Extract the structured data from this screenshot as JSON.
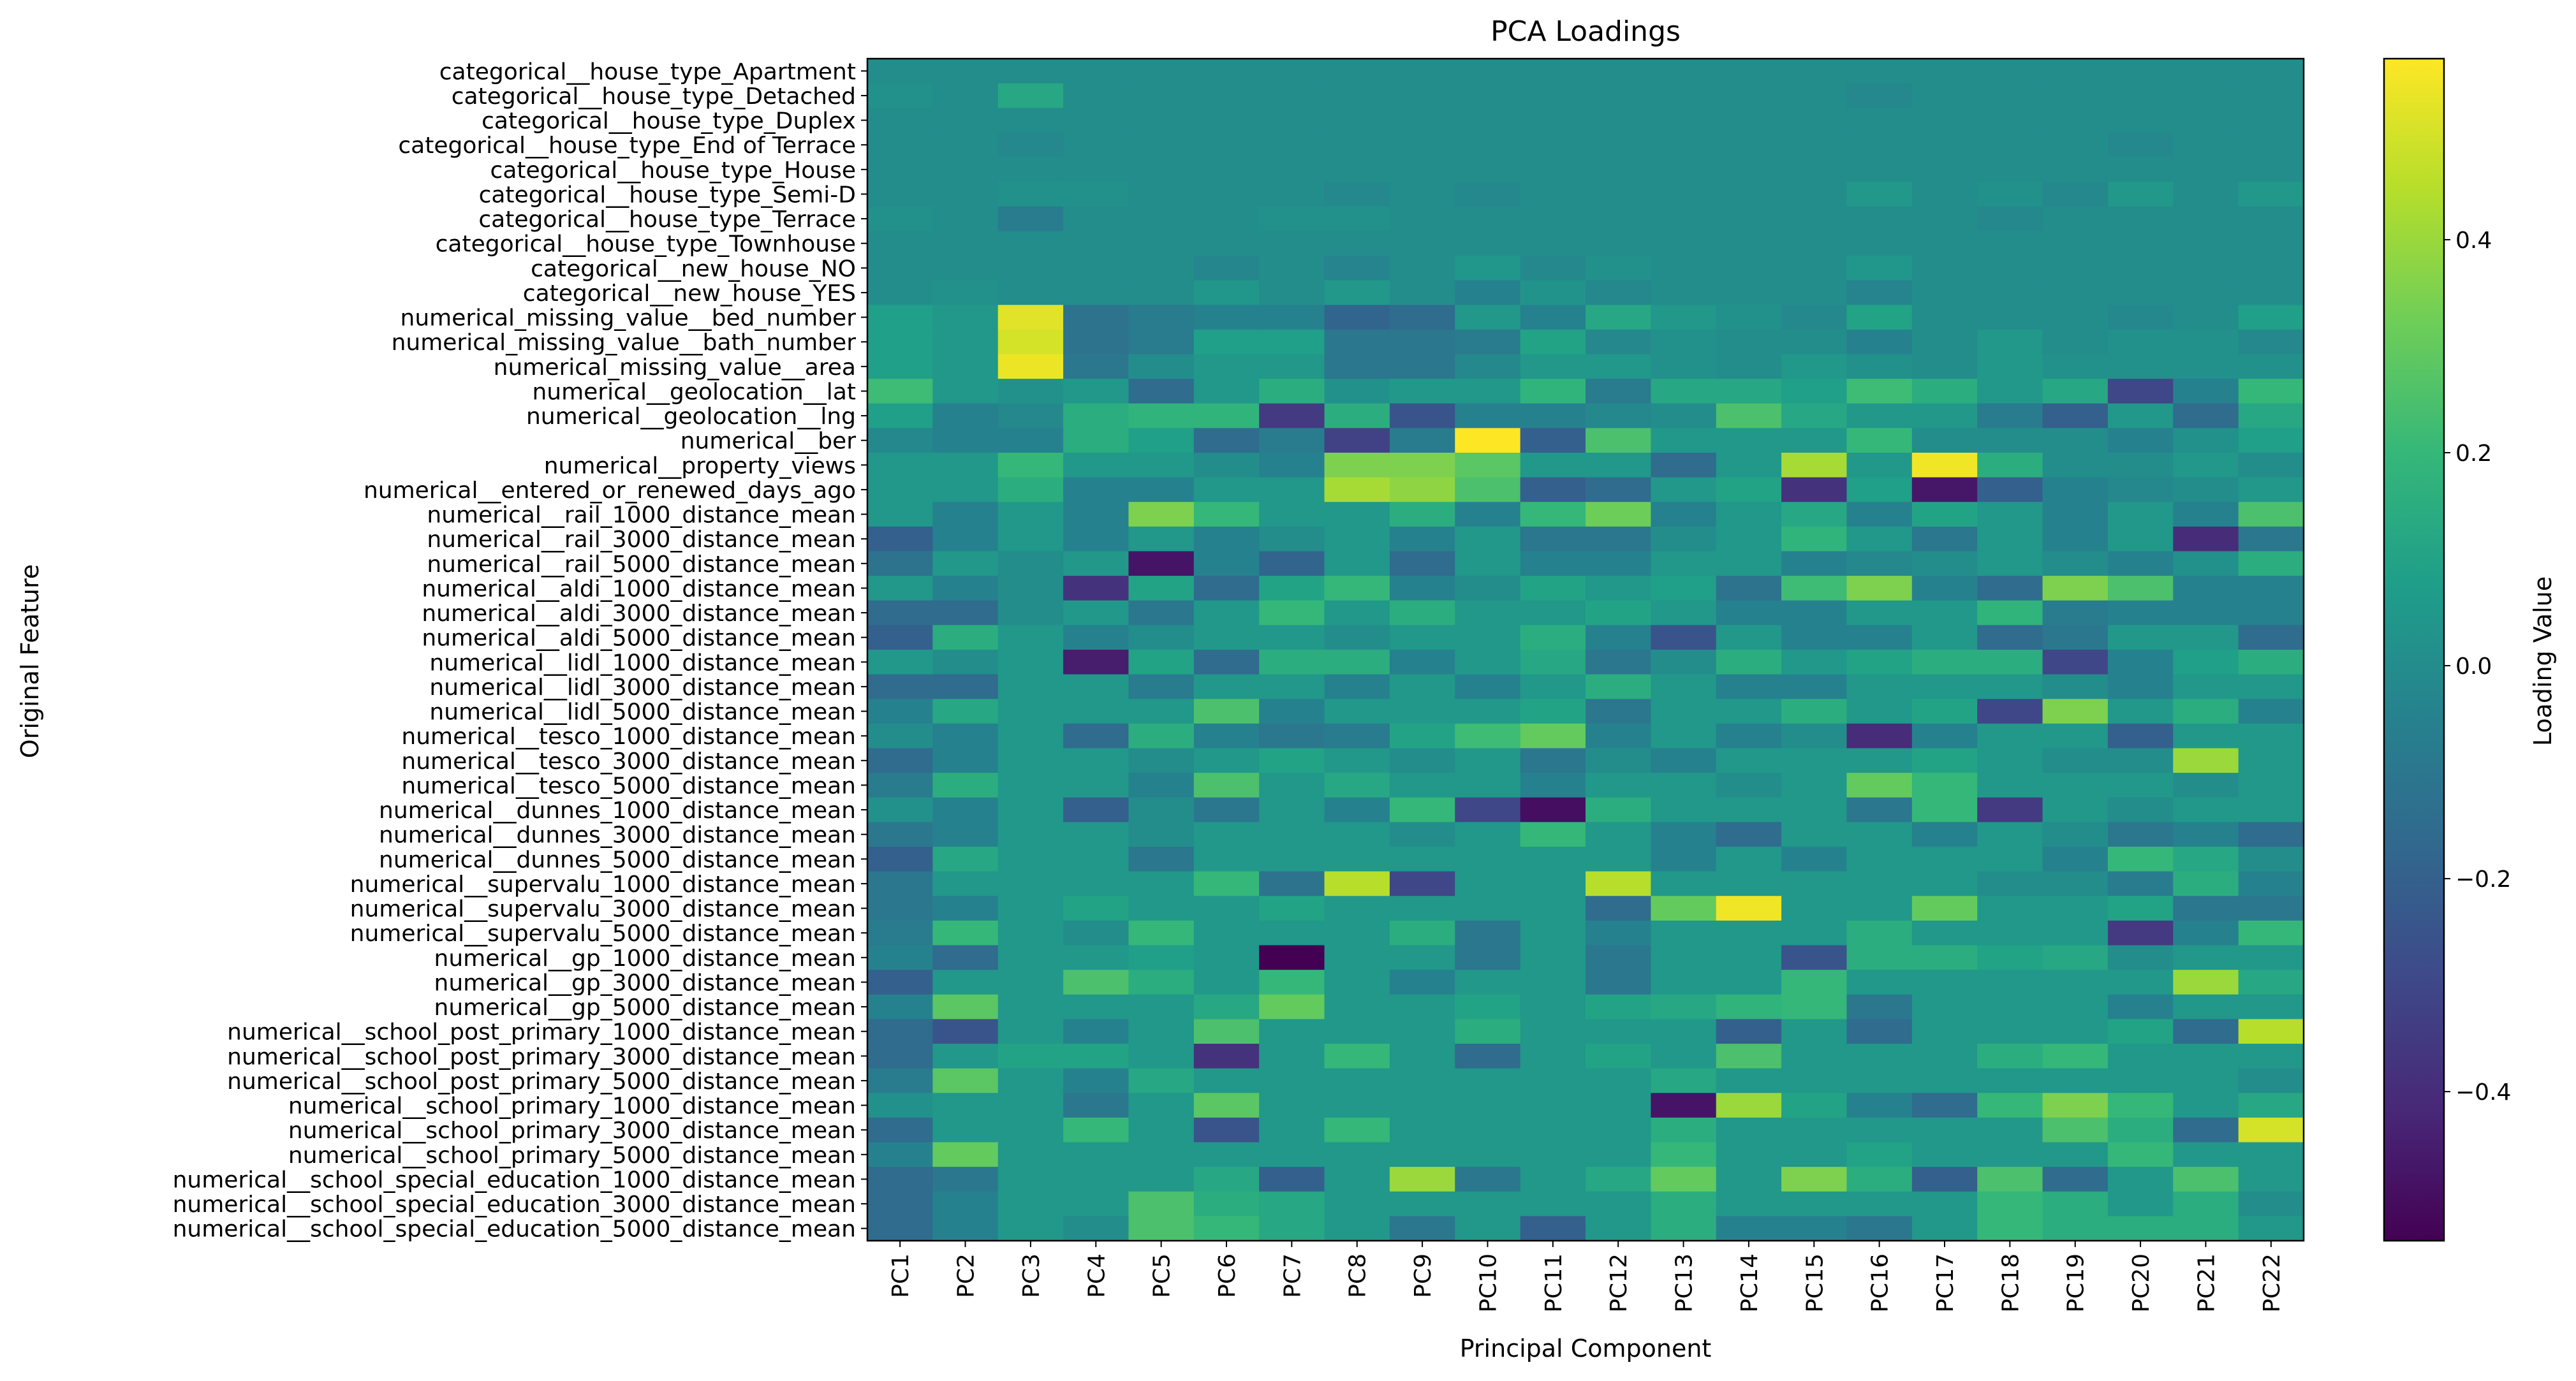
{
  "chart_data": {
    "type": "heatmap",
    "title": "PCA Loadings",
    "xlabel": "Principal Component",
    "ylabel": "Original Feature",
    "colorbar_label": "Loading Value",
    "colormap": "viridis",
    "vmin": -0.54,
    "vmax": 0.57,
    "colorbar_ticks": [
      -0.4,
      -0.2,
      0.0,
      0.2,
      0.4
    ],
    "colorbar_tick_labels": [
      "−0.4",
      "−0.2",
      "0.0",
      "0.2",
      "0.4"
    ],
    "x_categories": [
      "PC1",
      "PC2",
      "PC3",
      "PC4",
      "PC5",
      "PC6",
      "PC7",
      "PC8",
      "PC9",
      "PC10",
      "PC11",
      "PC12",
      "PC13",
      "PC14",
      "PC15",
      "PC16",
      "PC17",
      "PC18",
      "PC19",
      "PC20",
      "PC21",
      "PC22"
    ],
    "y_categories": [
      "categorical__house_type_Apartment",
      "categorical__house_type_Detached",
      "categorical__house_type_Duplex",
      "categorical__house_type_End of Terrace",
      "categorical__house_type_House",
      "categorical__house_type_Semi-D",
      "categorical__house_type_Terrace",
      "categorical__house_type_Townhouse",
      "categorical__new_house_NO",
      "categorical__new_house_YES",
      "numerical_missing_value__bed_number",
      "numerical_missing_value__bath_number",
      "numerical_missing_value__area",
      "numerical__geolocation__lat",
      "numerical__geolocation__lng",
      "numerical__ber",
      "numerical__property_views",
      "numerical__entered_or_renewed_days_ago",
      "numerical__rail_1000_distance_mean",
      "numerical__rail_3000_distance_mean",
      "numerical__rail_5000_distance_mean",
      "numerical__aldi_1000_distance_mean",
      "numerical__aldi_3000_distance_mean",
      "numerical__aldi_5000_distance_mean",
      "numerical__lidl_1000_distance_mean",
      "numerical__lidl_3000_distance_mean",
      "numerical__lidl_5000_distance_mean",
      "numerical__tesco_1000_distance_mean",
      "numerical__tesco_3000_distance_mean",
      "numerical__tesco_5000_distance_mean",
      "numerical__dunnes_1000_distance_mean",
      "numerical__dunnes_3000_distance_mean",
      "numerical__dunnes_5000_distance_mean",
      "numerical__supervalu_1000_distance_mean",
      "numerical__supervalu_3000_distance_mean",
      "numerical__supervalu_5000_distance_mean",
      "numerical__gp_1000_distance_mean",
      "numerical__gp_3000_distance_mean",
      "numerical__gp_5000_distance_mean",
      "numerical__school_post_primary_1000_distance_mean",
      "numerical__school_post_primary_3000_distance_mean",
      "numerical__school_post_primary_5000_distance_mean",
      "numerical__school_primary_1000_distance_mean",
      "numerical__school_primary_3000_distance_mean",
      "numerical__school_primary_5000_distance_mean",
      "numerical__school_special_education_1000_distance_mean",
      "numerical__school_special_education_3000_distance_mean",
      "numerical__school_special_education_5000_distance_mean"
    ],
    "values": [
      [
        0.0,
        0.0,
        0.0,
        0.0,
        0.0,
        0.0,
        0.0,
        0.0,
        0.0,
        0.0,
        0.0,
        0.0,
        0.0,
        0.0,
        0.0,
        0.0,
        0.0,
        0.0,
        0.0,
        0.0,
        0.0,
        0.0
      ],
      [
        0.02,
        0.0,
        0.12,
        0.0,
        0.0,
        0.0,
        0.0,
        0.0,
        0.0,
        0.0,
        0.0,
        0.0,
        0.0,
        0.0,
        0.0,
        -0.02,
        0.0,
        0.0,
        0.0,
        0.0,
        0.0,
        0.0
      ],
      [
        0.0,
        0.0,
        0.0,
        0.0,
        0.0,
        0.0,
        0.0,
        0.0,
        0.0,
        0.0,
        0.0,
        0.0,
        0.0,
        0.0,
        0.0,
        0.0,
        0.0,
        0.0,
        0.0,
        0.0,
        0.0,
        0.0
      ],
      [
        0.0,
        0.0,
        -0.02,
        0.0,
        0.0,
        0.0,
        0.0,
        0.0,
        0.0,
        0.0,
        0.0,
        0.0,
        0.0,
        0.0,
        0.0,
        0.0,
        0.0,
        0.0,
        0.0,
        -0.02,
        0.0,
        0.0
      ],
      [
        0.0,
        0.0,
        0.0,
        0.0,
        0.0,
        0.0,
        0.0,
        0.0,
        0.0,
        0.0,
        0.0,
        0.0,
        0.0,
        0.0,
        0.0,
        0.0,
        0.0,
        0.0,
        0.0,
        0.0,
        0.0,
        0.0
      ],
      [
        0.0,
        0.0,
        0.02,
        0.02,
        0.0,
        0.0,
        0.0,
        -0.02,
        0.0,
        -0.02,
        0.0,
        0.0,
        0.0,
        0.0,
        0.0,
        0.05,
        0.0,
        0.02,
        -0.02,
        0.05,
        0.0,
        0.05
      ],
      [
        0.02,
        0.0,
        -0.08,
        0.0,
        0.0,
        0.0,
        0.02,
        0.02,
        0.0,
        0.0,
        0.0,
        0.0,
        0.0,
        0.0,
        0.0,
        0.0,
        0.0,
        -0.02,
        0.0,
        0.0,
        0.0,
        0.0
      ],
      [
        0.0,
        0.0,
        0.0,
        0.0,
        0.0,
        0.0,
        0.0,
        0.0,
        0.0,
        0.0,
        0.0,
        0.0,
        0.0,
        0.0,
        0.0,
        0.0,
        0.0,
        0.0,
        0.0,
        0.0,
        0.0,
        0.0
      ],
      [
        0.0,
        0.0,
        0.0,
        0.0,
        0.0,
        -0.03,
        0.0,
        -0.04,
        0.0,
        0.04,
        -0.02,
        0.02,
        0.0,
        0.0,
        0.0,
        0.04,
        0.0,
        0.0,
        0.0,
        0.0,
        0.0,
        0.0
      ],
      [
        0.0,
        0.02,
        0.0,
        0.0,
        0.0,
        0.04,
        0.0,
        0.05,
        0.0,
        -0.05,
        0.03,
        -0.02,
        0.0,
        0.0,
        0.0,
        -0.04,
        0.0,
        0.0,
        0.0,
        0.0,
        0.0,
        0.0
      ],
      [
        0.08,
        0.05,
        0.52,
        -0.12,
        -0.08,
        -0.05,
        -0.05,
        -0.18,
        -0.15,
        0.05,
        -0.05,
        0.12,
        0.05,
        0.02,
        -0.02,
        0.1,
        0.0,
        0.0,
        0.0,
        -0.02,
        0.0,
        0.08
      ],
      [
        0.08,
        0.05,
        0.5,
        -0.12,
        -0.08,
        0.08,
        0.08,
        -0.1,
        -0.1,
        -0.08,
        0.1,
        -0.02,
        0.02,
        0.0,
        0.0,
        -0.05,
        0.0,
        0.05,
        0.0,
        0.02,
        0.02,
        -0.02
      ],
      [
        0.08,
        0.05,
        0.54,
        -0.1,
        0.0,
        0.05,
        0.05,
        -0.1,
        -0.1,
        -0.02,
        0.05,
        0.05,
        0.02,
        0.0,
        0.05,
        0.02,
        0.0,
        0.05,
        0.02,
        0.02,
        0.02,
        0.02
      ],
      [
        0.22,
        0.05,
        0.02,
        0.05,
        -0.15,
        0.05,
        0.15,
        0.02,
        0.05,
        0.05,
        0.18,
        -0.08,
        0.12,
        0.12,
        0.08,
        0.22,
        0.15,
        0.05,
        0.12,
        -0.3,
        -0.05,
        0.2
      ],
      [
        0.08,
        -0.05,
        -0.02,
        0.15,
        0.18,
        0.18,
        -0.35,
        0.15,
        -0.25,
        -0.05,
        -0.05,
        -0.02,
        0.0,
        0.25,
        0.12,
        0.05,
        0.05,
        -0.08,
        -0.2,
        0.05,
        -0.15,
        0.12
      ],
      [
        -0.02,
        -0.05,
        -0.05,
        0.15,
        0.08,
        -0.15,
        -0.08,
        -0.32,
        -0.08,
        0.57,
        -0.2,
        0.25,
        0.05,
        0.05,
        0.05,
        0.2,
        0.0,
        0.0,
        0.0,
        -0.05,
        0.02,
        0.08
      ],
      [
        0.05,
        0.05,
        0.2,
        0.05,
        0.05,
        0.0,
        -0.05,
        0.35,
        0.35,
        0.28,
        0.05,
        0.05,
        -0.15,
        0.05,
        0.42,
        0.05,
        0.55,
        0.15,
        0.0,
        0.0,
        0.05,
        0.0
      ],
      [
        0.05,
        0.05,
        0.15,
        -0.05,
        -0.05,
        0.05,
        0.05,
        0.42,
        0.38,
        0.25,
        -0.2,
        -0.15,
        0.05,
        0.1,
        -0.38,
        0.08,
        -0.47,
        -0.2,
        -0.05,
        -0.02,
        0.0,
        0.05
      ],
      [
        0.05,
        -0.05,
        0.05,
        -0.05,
        0.35,
        0.2,
        0.05,
        0.05,
        0.15,
        -0.05,
        0.2,
        0.32,
        -0.05,
        0.05,
        0.12,
        -0.05,
        0.1,
        0.05,
        -0.05,
        0.05,
        -0.05,
        0.25
      ],
      [
        -0.2,
        -0.05,
        0.05,
        -0.05,
        0.05,
        -0.05,
        0.0,
        0.05,
        -0.05,
        0.05,
        -0.1,
        -0.1,
        0.0,
        0.05,
        0.18,
        0.05,
        -0.1,
        0.05,
        -0.05,
        0.05,
        -0.4,
        -0.1
      ],
      [
        -0.12,
        0.05,
        0.0,
        0.05,
        -0.48,
        -0.05,
        -0.18,
        0.05,
        -0.15,
        0.05,
        -0.05,
        -0.05,
        0.05,
        0.05,
        -0.05,
        -0.02,
        0.0,
        0.05,
        0.0,
        -0.05,
        0.02,
        0.15
      ],
      [
        0.05,
        -0.05,
        0.0,
        -0.38,
        0.1,
        -0.15,
        0.1,
        0.2,
        -0.05,
        0.0,
        0.1,
        0.05,
        0.08,
        -0.12,
        0.22,
        0.35,
        -0.05,
        -0.15,
        0.35,
        0.25,
        -0.05,
        -0.05
      ],
      [
        -0.15,
        -0.15,
        0.0,
        0.05,
        -0.1,
        0.05,
        0.2,
        0.05,
        0.15,
        0.05,
        0.05,
        0.1,
        0.05,
        -0.05,
        -0.05,
        0.05,
        0.05,
        0.18,
        -0.08,
        -0.05,
        -0.05,
        -0.05
      ],
      [
        -0.2,
        0.15,
        0.05,
        -0.05,
        0.0,
        0.05,
        0.05,
        0.0,
        0.05,
        0.05,
        0.15,
        -0.05,
        -0.25,
        0.05,
        -0.05,
        -0.05,
        0.05,
        -0.15,
        -0.1,
        0.05,
        0.05,
        -0.15
      ],
      [
        0.05,
        0.0,
        0.05,
        -0.45,
        0.1,
        -0.15,
        0.15,
        0.15,
        -0.05,
        0.05,
        0.12,
        -0.1,
        0.0,
        0.15,
        0.05,
        0.1,
        0.15,
        0.15,
        -0.3,
        -0.05,
        0.08,
        0.15
      ],
      [
        -0.15,
        -0.15,
        0.05,
        0.05,
        -0.08,
        0.05,
        0.05,
        -0.05,
        0.05,
        -0.05,
        0.05,
        0.15,
        0.05,
        -0.05,
        -0.05,
        0.05,
        0.05,
        0.05,
        0.0,
        -0.05,
        0.05,
        0.05
      ],
      [
        -0.05,
        0.12,
        0.05,
        0.05,
        0.05,
        0.25,
        -0.05,
        0.05,
        0.05,
        0.05,
        0.1,
        -0.1,
        0.05,
        0.05,
        0.15,
        0.05,
        0.1,
        -0.3,
        0.35,
        0.05,
        0.15,
        -0.05
      ],
      [
        0.0,
        -0.05,
        0.05,
        -0.15,
        0.15,
        -0.05,
        -0.1,
        -0.08,
        0.1,
        0.22,
        0.3,
        -0.05,
        0.05,
        -0.05,
        0.0,
        -0.4,
        -0.05,
        0.05,
        0.05,
        -0.2,
        0.05,
        0.05
      ],
      [
        -0.15,
        -0.05,
        0.05,
        0.05,
        0.0,
        0.05,
        0.1,
        0.05,
        0.0,
        0.05,
        -0.1,
        0.0,
        -0.05,
        0.05,
        0.05,
        0.05,
        0.1,
        0.05,
        0.0,
        0.0,
        0.4,
        0.05
      ],
      [
        -0.08,
        0.15,
        0.05,
        0.05,
        -0.05,
        0.25,
        0.05,
        0.12,
        0.05,
        0.05,
        -0.05,
        0.05,
        0.05,
        0.0,
        0.05,
        0.3,
        0.2,
        0.05,
        0.05,
        0.05,
        0.0,
        0.05
      ],
      [
        0.02,
        -0.05,
        0.05,
        -0.2,
        0.0,
        -0.1,
        0.05,
        -0.05,
        0.2,
        -0.3,
        -0.5,
        0.15,
        0.05,
        0.05,
        0.05,
        -0.1,
        0.2,
        -0.35,
        0.05,
        0.0,
        0.05,
        0.05
      ],
      [
        -0.1,
        -0.05,
        0.05,
        0.05,
        0.0,
        0.05,
        0.05,
        0.05,
        0.0,
        0.05,
        0.2,
        0.05,
        -0.05,
        -0.15,
        0.05,
        0.05,
        -0.05,
        0.05,
        0.0,
        -0.1,
        -0.05,
        -0.15
      ],
      [
        -0.2,
        0.12,
        0.05,
        0.05,
        -0.1,
        0.05,
        0.05,
        0.05,
        0.05,
        0.05,
        0.05,
        0.05,
        -0.05,
        0.05,
        -0.05,
        0.05,
        0.05,
        0.05,
        -0.05,
        0.2,
        0.12,
        0.0
      ],
      [
        -0.1,
        0.05,
        0.05,
        0.05,
        0.05,
        0.2,
        -0.12,
        0.45,
        -0.3,
        0.05,
        0.05,
        0.45,
        0.05,
        0.05,
        0.05,
        0.05,
        0.05,
        0.0,
        0.0,
        -0.08,
        0.15,
        -0.05
      ],
      [
        -0.1,
        -0.05,
        0.05,
        0.1,
        0.05,
        0.05,
        0.1,
        0.05,
        0.05,
        0.05,
        0.05,
        -0.15,
        0.3,
        0.55,
        0.05,
        0.05,
        0.3,
        0.05,
        0.05,
        0.1,
        -0.1,
        -0.1
      ],
      [
        -0.08,
        0.2,
        0.05,
        0.0,
        0.2,
        0.05,
        0.05,
        0.05,
        0.15,
        -0.1,
        0.05,
        -0.05,
        0.05,
        0.05,
        0.05,
        0.15,
        0.05,
        0.05,
        0.05,
        -0.35,
        -0.05,
        0.2
      ],
      [
        -0.05,
        -0.15,
        0.05,
        0.05,
        0.08,
        0.05,
        -0.54,
        0.05,
        0.05,
        -0.1,
        0.05,
        -0.1,
        0.05,
        0.05,
        -0.25,
        0.15,
        0.15,
        0.1,
        0.12,
        0.0,
        0.05,
        0.05
      ],
      [
        -0.2,
        0.05,
        0.05,
        0.25,
        0.15,
        0.05,
        0.2,
        0.05,
        -0.05,
        0.05,
        0.05,
        -0.1,
        0.05,
        0.05,
        0.2,
        0.05,
        0.05,
        0.05,
        0.05,
        0.05,
        0.4,
        0.12
      ],
      [
        -0.05,
        0.28,
        0.05,
        0.05,
        0.05,
        0.12,
        0.3,
        0.05,
        0.05,
        0.1,
        0.05,
        0.1,
        0.12,
        0.18,
        0.2,
        -0.1,
        0.05,
        0.05,
        0.05,
        -0.05,
        0.05,
        0.05
      ],
      [
        -0.15,
        -0.25,
        0.05,
        -0.05,
        0.05,
        0.25,
        0.05,
        0.05,
        0.05,
        0.15,
        0.05,
        0.05,
        0.05,
        -0.2,
        0.05,
        -0.15,
        0.05,
        0.05,
        0.05,
        0.1,
        -0.15,
        0.45
      ],
      [
        -0.15,
        0.05,
        0.1,
        0.1,
        0.05,
        -0.38,
        0.05,
        0.2,
        0.05,
        -0.15,
        0.05,
        0.1,
        0.05,
        0.25,
        0.05,
        0.05,
        0.05,
        0.15,
        0.2,
        0.05,
        0.05,
        0.05
      ],
      [
        -0.08,
        0.28,
        0.05,
        -0.05,
        0.12,
        0.05,
        0.05,
        0.05,
        0.05,
        0.05,
        0.05,
        0.05,
        0.12,
        0.05,
        0.05,
        0.05,
        0.05,
        0.05,
        0.05,
        0.05,
        0.05,
        0.0
      ],
      [
        0.02,
        0.05,
        0.05,
        -0.1,
        0.05,
        0.28,
        0.05,
        0.05,
        0.05,
        0.05,
        0.05,
        0.05,
        -0.48,
        0.4,
        0.1,
        -0.05,
        -0.15,
        0.2,
        0.35,
        0.2,
        0.05,
        0.12
      ],
      [
        -0.15,
        0.05,
        0.05,
        0.2,
        0.05,
        -0.25,
        0.05,
        0.2,
        0.05,
        0.05,
        0.05,
        0.05,
        0.15,
        0.05,
        0.05,
        0.05,
        0.05,
        0.05,
        0.25,
        0.15,
        -0.15,
        0.5
      ],
      [
        -0.05,
        0.3,
        0.05,
        0.05,
        0.05,
        0.05,
        0.05,
        0.05,
        0.05,
        0.05,
        0.05,
        0.05,
        0.2,
        0.05,
        0.05,
        0.1,
        0.05,
        0.05,
        0.05,
        0.2,
        0.05,
        0.05
      ],
      [
        -0.15,
        -0.1,
        0.05,
        0.05,
        0.05,
        0.12,
        -0.2,
        0.05,
        0.4,
        -0.1,
        0.05,
        0.12,
        0.3,
        0.05,
        0.35,
        0.15,
        -0.2,
        0.25,
        -0.15,
        0.05,
        0.25,
        0.05
      ],
      [
        -0.15,
        -0.05,
        0.05,
        0.05,
        0.25,
        0.15,
        0.12,
        0.05,
        0.05,
        0.05,
        0.05,
        0.05,
        0.15,
        0.05,
        0.05,
        0.05,
        0.05,
        0.2,
        0.15,
        0.05,
        0.15,
        0.0
      ],
      [
        -0.15,
        -0.05,
        0.05,
        0.0,
        0.25,
        0.2,
        0.12,
        0.05,
        -0.1,
        0.05,
        -0.2,
        0.05,
        0.15,
        -0.05,
        -0.05,
        -0.1,
        0.05,
        0.2,
        0.15,
        0.15,
        0.15,
        0.05
      ]
    ]
  }
}
